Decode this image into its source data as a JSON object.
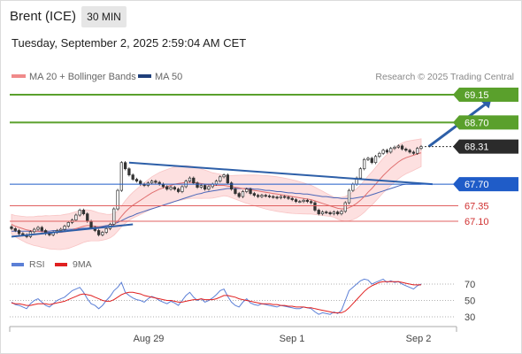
{
  "header": {
    "title": "Brent (ICE)",
    "timeframe": "30 MIN"
  },
  "timestamp": "Tuesday, September 2, 2025 2:59:04 AM CET",
  "legend": {
    "ma20": "MA 20 + Bollinger Bands",
    "ma50": "MA 50"
  },
  "copyright": "Research © 2025 Trading Central",
  "colors": {
    "resistance": "#5aa02c",
    "current": "#2b2b2b",
    "ma50_support": "#1f5cc8",
    "support": "#e06060",
    "rsi": "#5b7fd6",
    "rsi_ma": "#e02020",
    "arrow": "#2d5fa8"
  },
  "chart_data": [
    {
      "type": "candlestick",
      "ylim": [
        66.7,
        69.35
      ],
      "x_tick_labels": [
        "Aug 29",
        "Sep 1",
        "Sep 2"
      ],
      "levels": [
        {
          "label": "69.15",
          "value": 69.15,
          "kind": "resistance"
        },
        {
          "label": "68.70",
          "value": 68.7,
          "kind": "resistance"
        },
        {
          "label": "68.31",
          "value": 68.31,
          "kind": "current"
        },
        {
          "label": "67.70",
          "value": 67.7,
          "kind": "ma50"
        },
        {
          "label": "67.35",
          "value": 67.35,
          "kind": "support"
        },
        {
          "label": "67.10",
          "value": 67.1,
          "kind": "support"
        }
      ],
      "close_series": [
        66.98,
        66.95,
        66.9,
        66.88,
        66.85,
        66.93,
        66.97,
        67.0,
        66.95,
        66.9,
        66.88,
        66.92,
        66.95,
        66.97,
        67.02,
        67.08,
        67.12,
        67.2,
        67.28,
        67.22,
        67.1,
        67.0,
        66.95,
        66.88,
        66.92,
        66.98,
        67.05,
        67.3,
        67.6,
        68.05,
        67.95,
        67.85,
        67.78,
        67.75,
        67.7,
        67.68,
        67.72,
        67.75,
        67.73,
        67.7,
        67.66,
        67.62,
        67.65,
        67.62,
        67.58,
        67.66,
        67.75,
        67.8,
        67.72,
        67.65,
        67.68,
        67.62,
        67.66,
        67.7,
        67.75,
        67.82,
        67.85,
        67.72,
        67.62,
        67.55,
        67.5,
        67.58,
        67.62,
        67.55,
        67.52,
        67.5,
        67.52,
        67.51,
        67.5,
        67.49,
        67.48,
        67.5,
        67.49,
        67.47,
        67.45,
        67.42,
        67.42,
        67.44,
        67.42,
        67.4,
        67.28,
        67.22,
        67.25,
        67.24,
        67.22,
        67.25,
        67.22,
        67.26,
        67.4,
        67.6,
        67.7,
        67.8,
        67.95,
        68.1,
        68.12,
        68.05,
        68.15,
        68.2,
        68.25,
        68.22,
        68.28,
        68.3,
        68.32,
        68.27,
        68.25,
        68.22,
        68.2,
        68.28,
        68.31
      ],
      "ma20_series": [
        67.05,
        67.02,
        67.0,
        66.98,
        66.96,
        66.95,
        66.94,
        66.94,
        66.93,
        66.93,
        66.92,
        66.92,
        66.92,
        66.92,
        66.93,
        66.94,
        66.96,
        66.98,
        67.0,
        67.02,
        67.03,
        67.03,
        67.02,
        67.01,
        67.01,
        67.01,
        67.02,
        67.05,
        67.1,
        67.18,
        67.25,
        67.31,
        67.36,
        67.4,
        67.44,
        67.48,
        67.52,
        67.56,
        67.59,
        67.62,
        67.64,
        67.66,
        67.68,
        67.7,
        67.71,
        67.72,
        67.73,
        67.73,
        67.73,
        67.72,
        67.71,
        67.7,
        67.69,
        67.68,
        67.68,
        67.68,
        67.68,
        67.67,
        67.66,
        67.65,
        67.64,
        67.63,
        67.62,
        67.61,
        67.6,
        67.59,
        67.58,
        67.57,
        67.56,
        67.55,
        67.54,
        67.53,
        67.52,
        67.51,
        67.5,
        67.49,
        67.48,
        67.47,
        67.46,
        67.45,
        67.43,
        67.41,
        67.39,
        67.37,
        67.35,
        67.33,
        67.31,
        67.3,
        67.3,
        67.32,
        67.35,
        67.39,
        67.44,
        67.5,
        67.57,
        67.63,
        67.7,
        67.77,
        67.84,
        67.9,
        67.96,
        68.01,
        68.06,
        68.1,
        68.13,
        68.15,
        68.17,
        68.19,
        68.21
      ],
      "ma50_series": [
        66.94,
        66.94,
        66.94,
        66.94,
        66.94,
        66.94,
        66.94,
        66.94,
        66.94,
        66.94,
        66.94,
        66.95,
        66.95,
        66.96,
        66.96,
        66.97,
        66.97,
        66.98,
        66.98,
        66.99,
        66.99,
        67.0,
        67.0,
        67.01,
        67.02,
        67.03,
        67.04,
        67.06,
        67.08,
        67.11,
        67.14,
        67.17,
        67.19,
        67.22,
        67.24,
        67.26,
        67.28,
        67.3,
        67.32,
        67.34,
        67.36,
        67.38,
        67.4,
        67.42,
        67.44,
        67.46,
        67.48,
        67.5,
        67.52,
        67.54,
        67.55,
        67.57,
        67.58,
        67.59,
        67.6,
        67.61,
        67.62,
        67.63,
        67.63,
        67.63,
        67.63,
        67.63,
        67.63,
        67.63,
        67.62,
        67.62,
        67.61,
        67.6,
        67.6,
        67.59,
        67.58,
        67.58,
        67.57,
        67.56,
        67.56,
        67.55,
        67.55,
        67.54,
        67.54,
        67.53,
        67.52,
        67.51,
        67.5,
        67.5,
        67.49,
        67.48,
        67.48,
        67.47,
        67.47,
        67.47,
        67.47,
        67.48,
        67.49,
        67.5,
        67.51,
        67.53,
        67.55,
        67.57,
        67.59,
        67.61,
        67.63,
        67.65,
        67.67,
        67.69,
        67.7,
        67.7,
        67.7,
        67.7,
        67.7
      ],
      "trendlines": [
        {
          "from": [
            31,
            68.05
          ],
          "to": [
            111,
            67.7
          ]
        },
        {
          "from": [
            0,
            66.85
          ],
          "to": [
            32,
            67.05
          ]
        }
      ],
      "projection": {
        "from": [
          110,
          68.31
        ],
        "to": [
          124,
          69.1
        ]
      }
    },
    {
      "type": "line",
      "legend": [
        "RSI",
        "9MA"
      ],
      "ylim": [
        25,
        78
      ],
      "y_tick_labels": [
        "70",
        "50",
        "30"
      ],
      "y_ticks": [
        70,
        50,
        30
      ],
      "series": [
        {
          "name": "RSI",
          "values": [
            48,
            45,
            44,
            42,
            40,
            46,
            50,
            52,
            48,
            44,
            42,
            46,
            50,
            52,
            54,
            58,
            62,
            64,
            66,
            60,
            52,
            46,
            44,
            40,
            44,
            50,
            55,
            62,
            66,
            72,
            60,
            56,
            53,
            51,
            50,
            48,
            52,
            55,
            53,
            50,
            48,
            46,
            49,
            47,
            44,
            50,
            56,
            60,
            54,
            50,
            52,
            48,
            50,
            53,
            57,
            62,
            64,
            55,
            48,
            44,
            42,
            48,
            52,
            47,
            45,
            44,
            46,
            45,
            44,
            43,
            42,
            44,
            43,
            42,
            41,
            40,
            40,
            42,
            41,
            40,
            36,
            33,
            35,
            34,
            33,
            36,
            34,
            38,
            50,
            62,
            66,
            70,
            74,
            76,
            75,
            70,
            72,
            74,
            76,
            72,
            74,
            72,
            73,
            70,
            68,
            66,
            64,
            68,
            70
          ]
        },
        {
          "name": "9MA",
          "values": [
            47,
            46,
            46,
            45,
            44,
            44,
            45,
            46,
            46,
            46,
            45,
            46,
            47,
            48,
            49,
            51,
            53,
            55,
            57,
            58,
            57,
            56,
            54,
            52,
            50,
            49,
            49,
            51,
            54,
            57,
            59,
            60,
            60,
            59,
            58,
            56,
            55,
            54,
            53,
            52,
            51,
            50,
            50,
            49,
            48,
            48,
            49,
            50,
            51,
            51,
            52,
            51,
            51,
            51,
            52,
            54,
            56,
            56,
            55,
            54,
            52,
            51,
            50,
            49,
            48,
            47,
            46,
            46,
            46,
            45,
            45,
            44,
            44,
            43,
            43,
            42,
            42,
            42,
            41,
            41,
            40,
            39,
            38,
            37,
            36,
            35,
            35,
            35,
            37,
            41,
            46,
            51,
            56,
            61,
            65,
            68,
            70,
            72,
            73,
            73,
            73,
            73,
            73,
            72,
            71,
            70,
            69,
            69,
            69
          ]
        }
      ]
    }
  ]
}
